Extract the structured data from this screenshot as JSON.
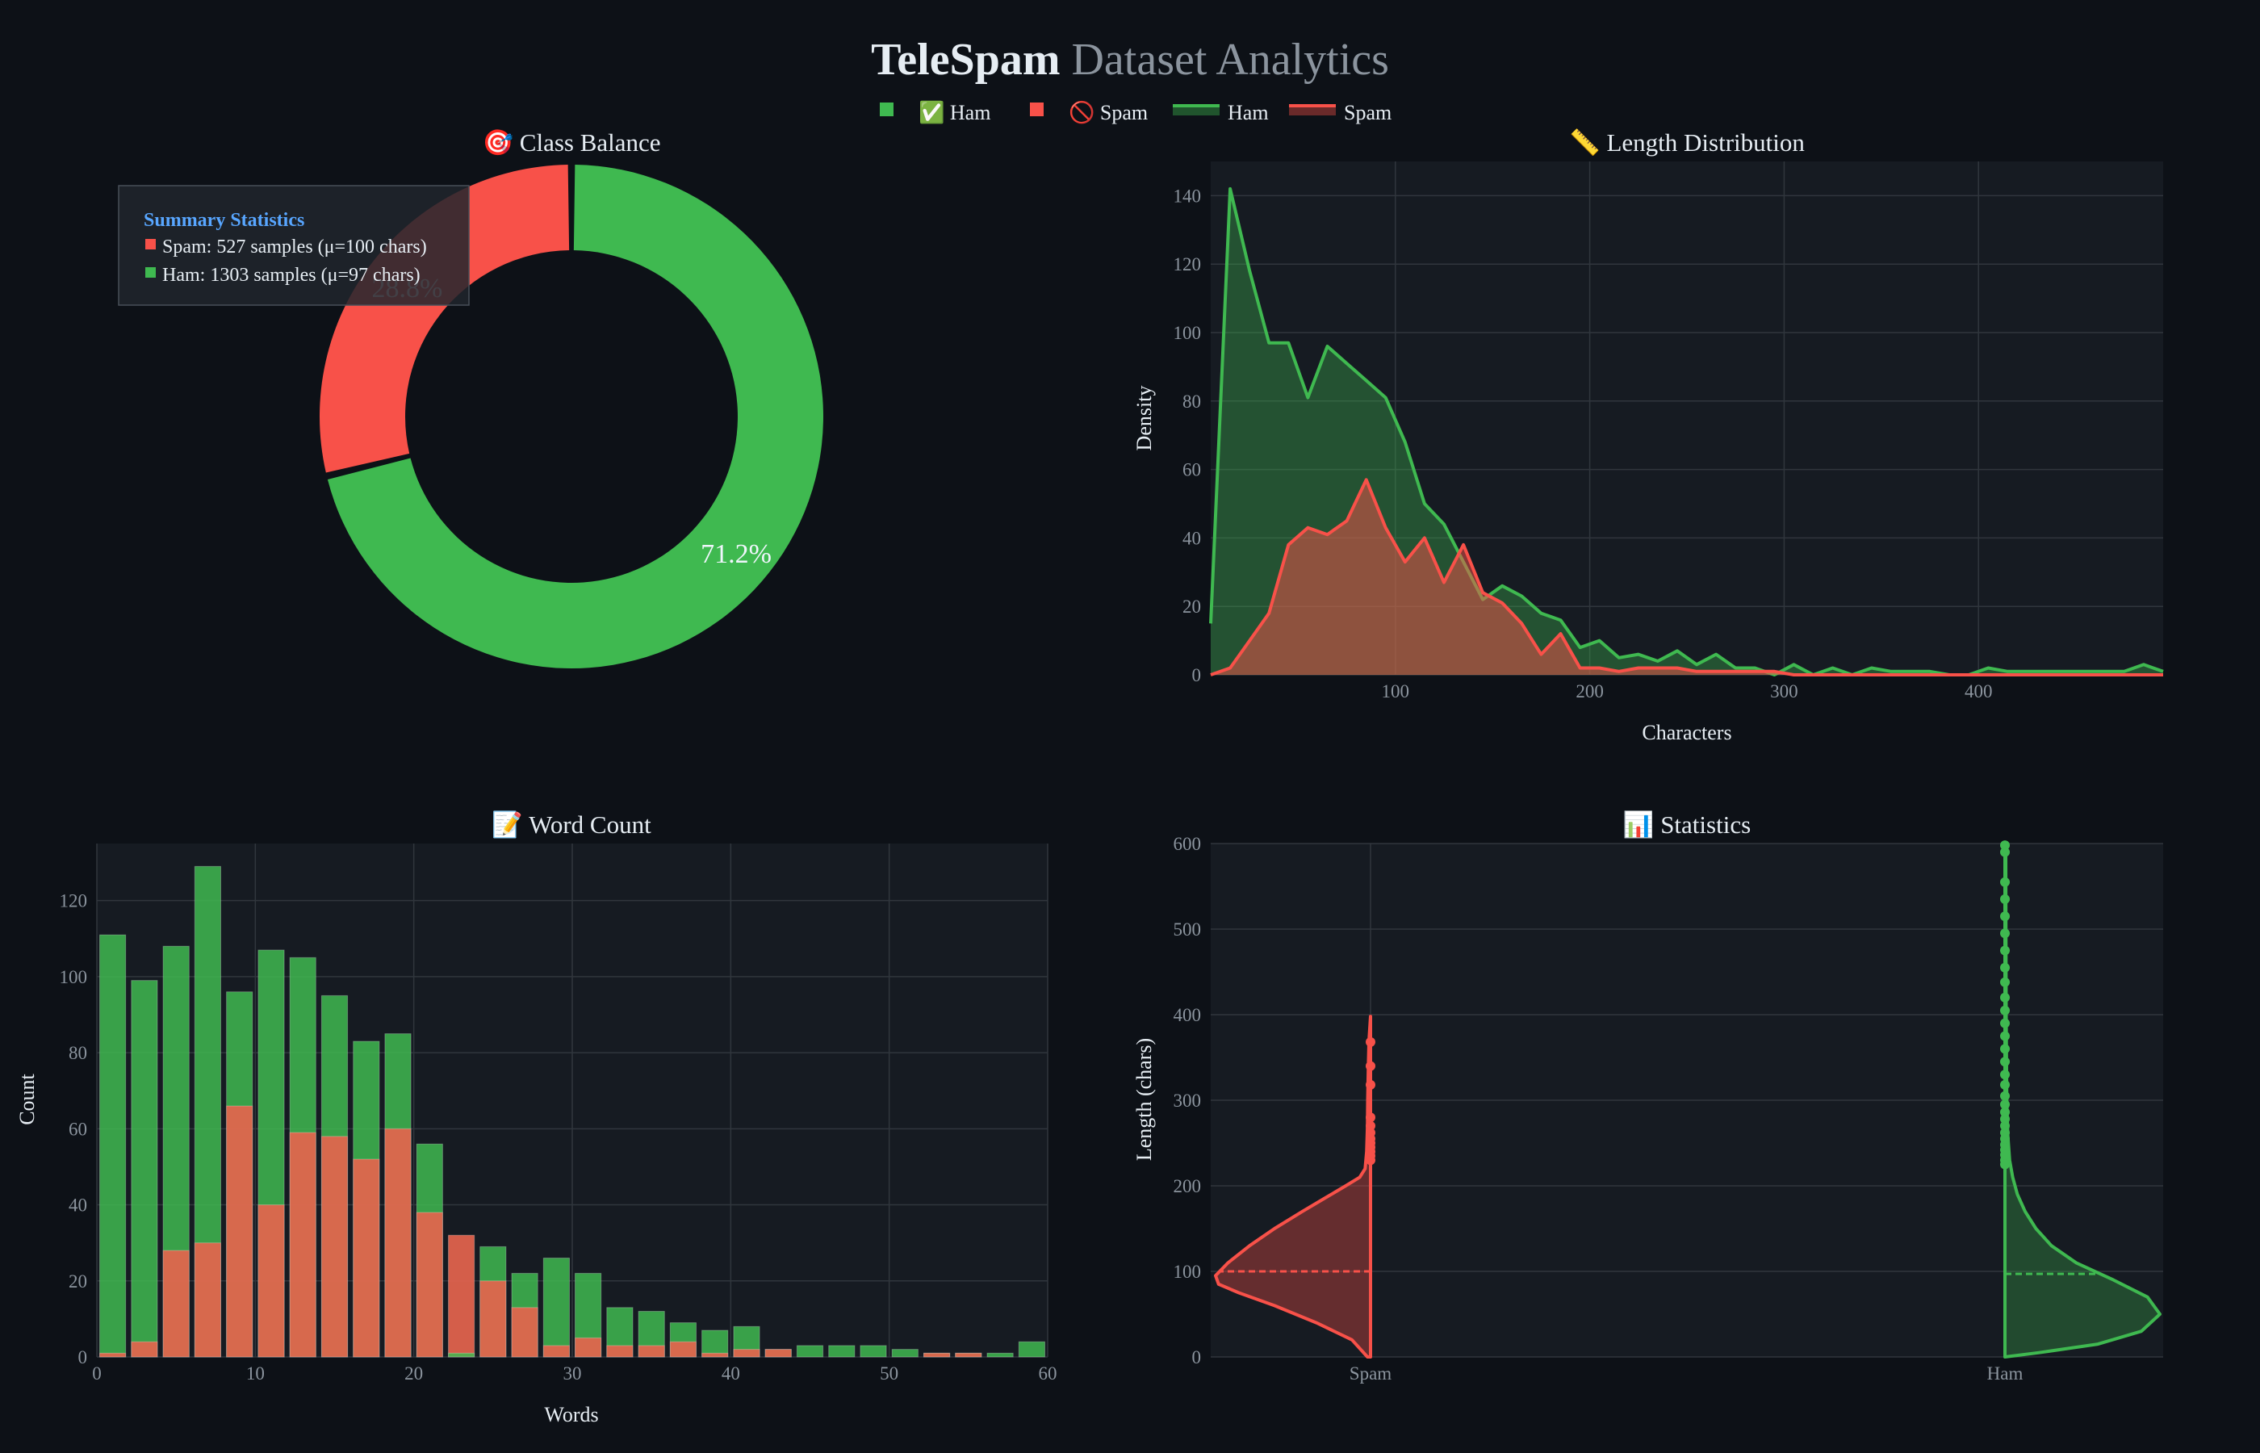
{
  "page": {
    "title_main": "TeleSpam",
    "title_sub": " Dataset Analytics",
    "legend": [
      {
        "label": "✅ Ham",
        "color": "#3fb950",
        "kind": "square"
      },
      {
        "label": "🚫 Spam",
        "color": "#f85149",
        "kind": "square"
      },
      {
        "label": "Ham",
        "color": "#3fb950",
        "kind": "area"
      },
      {
        "label": "Spam",
        "color": "#f85149",
        "kind": "area"
      }
    ],
    "colors": {
      "ham": "#3fb950",
      "spam": "#f85149",
      "panel": "#161b22",
      "grid": "#30363d",
      "bg": "#0d1117",
      "summary_title": "#58a6ff"
    }
  },
  "summary": {
    "title": "Summary Statistics",
    "spam_line": "Spam: 527 samples (μ=100 chars)",
    "ham_line": "Ham: 1303 samples (μ=97 chars)"
  },
  "chart_data": [
    {
      "id": "donut",
      "type": "pie",
      "title": "🎯 Class Balance",
      "labels": [
        "Ham",
        "Spam"
      ],
      "values": [
        1303,
        527
      ],
      "percent_labels": [
        "71.2%",
        "28.8%"
      ]
    },
    {
      "id": "length",
      "type": "area",
      "title": "📏 Length Distribution",
      "xlabel": "Characters",
      "ylabel": "Density",
      "xlim": [
        5,
        495
      ],
      "ylim": [
        0,
        150
      ],
      "xticks": [
        100,
        200,
        300,
        400
      ],
      "yticks": [
        0,
        20,
        40,
        60,
        80,
        100,
        120,
        140
      ],
      "series": [
        {
          "name": "Ham",
          "x": [
            5,
            15,
            25,
            35,
            45,
            55,
            65,
            75,
            85,
            95,
            105,
            115,
            125,
            135,
            145,
            155,
            165,
            175,
            185,
            195,
            205,
            215,
            225,
            235,
            245,
            255,
            265,
            275,
            285,
            295,
            305,
            315,
            325,
            335,
            345,
            355,
            365,
            375,
            385,
            395,
            405,
            415,
            425,
            435,
            445,
            455,
            465,
            475,
            485,
            495
          ],
          "y": [
            15,
            142,
            118,
            97,
            97,
            81,
            96,
            91,
            86,
            81,
            68,
            50,
            44,
            33,
            22,
            26,
            23,
            18,
            16,
            8,
            10,
            5,
            6,
            4,
            7,
            3,
            6,
            2,
            2,
            0,
            3,
            0,
            2,
            0,
            2,
            1,
            1,
            1,
            0,
            0,
            2,
            1,
            1,
            1,
            1,
            1,
            1,
            1,
            3,
            1
          ]
        },
        {
          "name": "Spam",
          "x": [
            5,
            15,
            25,
            35,
            45,
            55,
            65,
            75,
            85,
            95,
            105,
            115,
            125,
            135,
            145,
            155,
            165,
            175,
            185,
            195,
            205,
            215,
            225,
            235,
            245,
            255,
            265,
            275,
            285,
            295,
            305,
            315,
            325,
            335,
            345,
            355,
            365,
            375,
            385,
            395,
            405,
            415,
            425,
            435,
            445,
            455,
            465,
            475,
            485,
            495
          ],
          "y": [
            0,
            2,
            10,
            18,
            38,
            43,
            41,
            45,
            57,
            43,
            33,
            40,
            27,
            38,
            24,
            21,
            15,
            6,
            12,
            2,
            2,
            1,
            2,
            2,
            2,
            1,
            1,
            1,
            1,
            1,
            0,
            0,
            0,
            0,
            0,
            0,
            0,
            0,
            0,
            0,
            0,
            0,
            0,
            0,
            0,
            0,
            0,
            0,
            0,
            0
          ]
        }
      ]
    },
    {
      "id": "words",
      "type": "bar",
      "title": "📝 Word Count",
      "xlabel": "Words",
      "ylabel": "Count",
      "xlim": [
        0,
        60
      ],
      "ylim": [
        0,
        135
      ],
      "xticks": [
        0,
        10,
        20,
        30,
        40,
        50,
        60
      ],
      "yticks": [
        0,
        20,
        40,
        60,
        80,
        100,
        120
      ],
      "x": [
        1,
        3,
        5,
        7,
        9,
        11,
        13,
        15,
        17,
        19,
        21,
        23,
        25,
        27,
        29,
        31,
        33,
        35,
        37,
        39,
        41,
        43,
        45,
        47,
        49,
        51,
        53,
        55,
        57,
        59
      ],
      "series": [
        {
          "name": "Ham",
          "values": [
            111,
            99,
            108,
            129,
            96,
            107,
            105,
            95,
            83,
            85,
            56,
            1,
            29,
            22,
            26,
            22,
            13,
            12,
            9,
            7,
            8,
            2,
            3,
            3,
            3,
            2,
            1,
            1,
            1,
            4
          ]
        },
        {
          "name": "Spam",
          "values": [
            1,
            4,
            28,
            30,
            66,
            40,
            59,
            58,
            52,
            60,
            38,
            32,
            20,
            13,
            3,
            5,
            3,
            3,
            4,
            1,
            2,
            2,
            0,
            0,
            0,
            0,
            1,
            1,
            0,
            0
          ]
        }
      ]
    },
    {
      "id": "stats",
      "type": "violin",
      "title": "📊 Statistics",
      "ylabel": "Length (chars)",
      "categories": [
        "Spam",
        "Ham"
      ],
      "ylim": [
        0,
        600
      ],
      "yticks": [
        0,
        100,
        200,
        300,
        400,
        500,
        600
      ],
      "spam": {
        "mean": 100,
        "outliers": [
          230,
          235,
          240,
          245,
          250,
          255,
          262,
          270,
          280,
          318,
          340,
          368
        ],
        "profile": [
          [
            0,
            0.02
          ],
          [
            20,
            0.12
          ],
          [
            40,
            0.35
          ],
          [
            60,
            0.62
          ],
          [
            75,
            0.85
          ],
          [
            85,
            0.98
          ],
          [
            95,
            1.0
          ],
          [
            110,
            0.92
          ],
          [
            130,
            0.78
          ],
          [
            150,
            0.62
          ],
          [
            170,
            0.44
          ],
          [
            185,
            0.3
          ],
          [
            200,
            0.16
          ],
          [
            210,
            0.07
          ],
          [
            220,
            0.035
          ],
          [
            240,
            0.025
          ],
          [
            270,
            0.02
          ],
          [
            300,
            0.018
          ],
          [
            340,
            0.014
          ],
          [
            370,
            0.01
          ],
          [
            398,
            0.0
          ]
        ]
      },
      "ham": {
        "mean": 97,
        "outliers": [
          225,
          230,
          236,
          242,
          248,
          255,
          262,
          270,
          278,
          286,
          295,
          305,
          318,
          330,
          345,
          360,
          375,
          390,
          405,
          420,
          438,
          455,
          475,
          495,
          515,
          535,
          555,
          590,
          598
        ],
        "profile": [
          [
            0,
            0.0
          ],
          [
            5,
            0.22
          ],
          [
            15,
            0.6
          ],
          [
            30,
            0.88
          ],
          [
            50,
            1.0
          ],
          [
            70,
            0.92
          ],
          [
            90,
            0.7
          ],
          [
            110,
            0.46
          ],
          [
            130,
            0.3
          ],
          [
            150,
            0.2
          ],
          [
            170,
            0.13
          ],
          [
            190,
            0.08
          ],
          [
            210,
            0.05
          ],
          [
            230,
            0.03
          ],
          [
            260,
            0.018
          ],
          [
            300,
            0.012
          ],
          [
            400,
            0.008
          ],
          [
            500,
            0.006
          ],
          [
            600,
            0.005
          ]
        ]
      }
    }
  ]
}
